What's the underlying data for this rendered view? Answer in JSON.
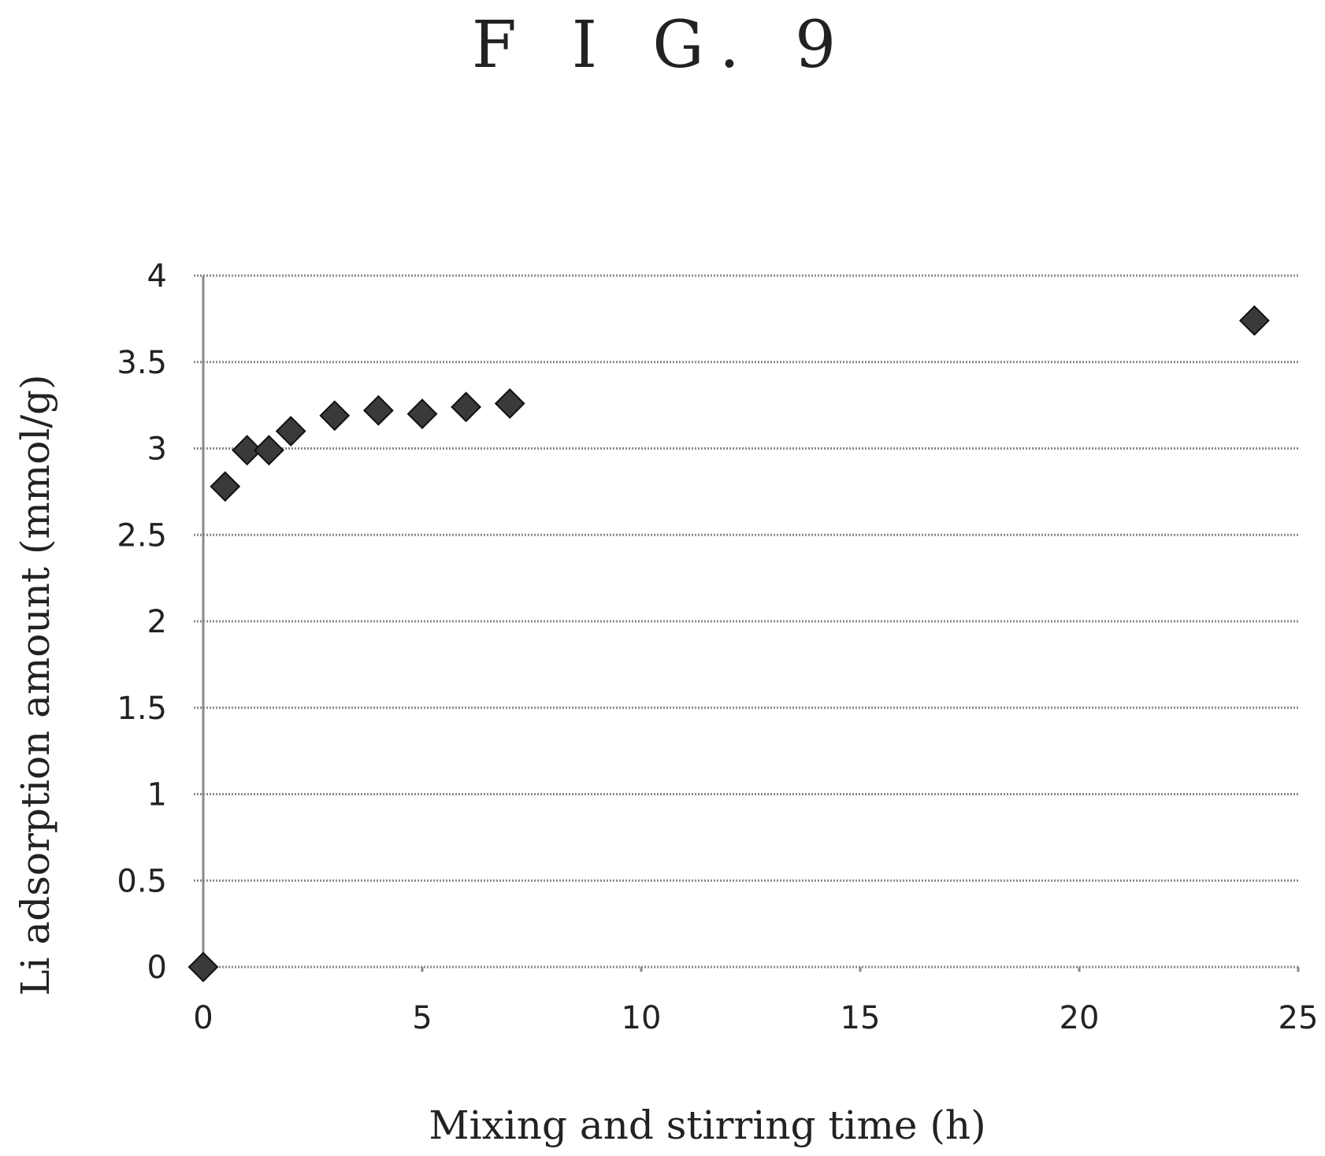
{
  "figure_label": "F I G. 9",
  "chart_data": {
    "type": "scatter",
    "xlabel": "Mixing and stirring time (h)",
    "ylabel": "Li adsorption amount (mmol/g)",
    "xlim": [
      0,
      25
    ],
    "ylim": [
      0,
      4
    ],
    "xticks": [
      "0",
      "5",
      "10",
      "15",
      "20",
      "25"
    ],
    "yticks": [
      "0",
      "0.5",
      "1",
      "1.5",
      "2",
      "2.5",
      "3",
      "3.5",
      "4"
    ],
    "grid": "horizontal",
    "legend": "none",
    "marker": "diamond",
    "marker_color": "#3a3a3a",
    "points": [
      {
        "x": 0,
        "y": 0
      },
      {
        "x": 0.5,
        "y": 2.78
      },
      {
        "x": 1,
        "y": 2.99
      },
      {
        "x": 1.5,
        "y": 2.99
      },
      {
        "x": 2,
        "y": 3.1
      },
      {
        "x": 3,
        "y": 3.19
      },
      {
        "x": 4,
        "y": 3.22
      },
      {
        "x": 5,
        "y": 3.2
      },
      {
        "x": 6,
        "y": 3.24
      },
      {
        "x": 7,
        "y": 3.26
      },
      {
        "x": 24,
        "y": 3.74
      }
    ]
  }
}
